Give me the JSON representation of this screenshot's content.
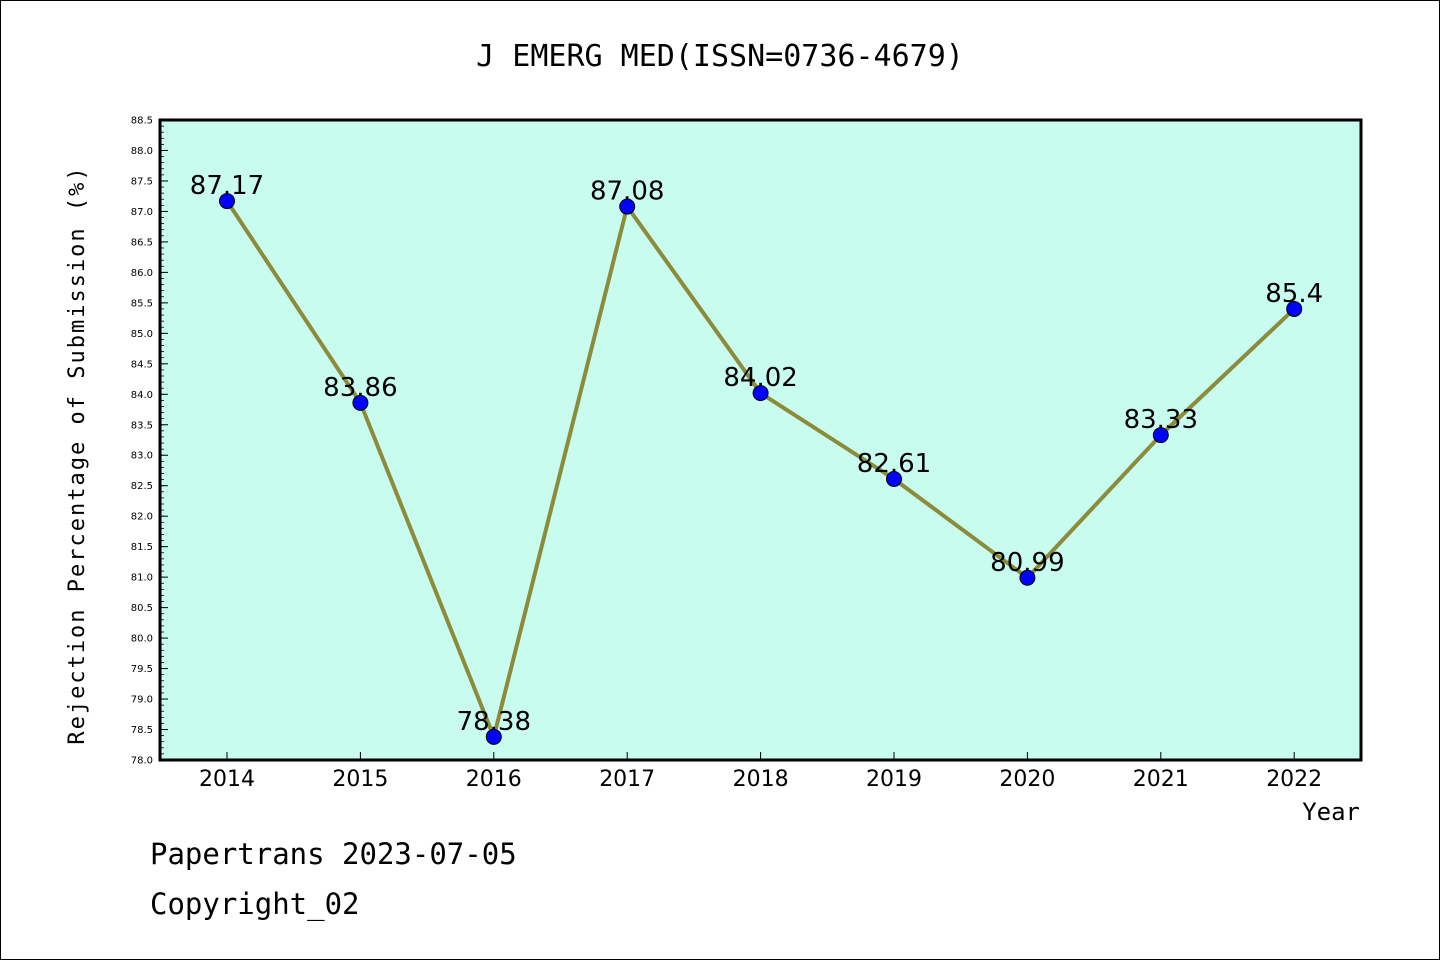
{
  "chart_data": {
    "type": "line",
    "title": "J EMERG MED(ISSN=0736-4679)",
    "xlabel": "Year",
    "ylabel": "Rejection Percentage of Submission (%)",
    "x": [
      "2014",
      "2015",
      "2016",
      "2017",
      "2018",
      "2019",
      "2020",
      "2021",
      "2022"
    ],
    "series": [
      {
        "values": [
          87.17,
          83.86,
          78.38,
          87.08,
          84.02,
          82.61,
          80.99,
          83.33,
          85.4
        ],
        "labels": [
          "87.17",
          "83.86",
          "78.38",
          "87.08",
          "84.02",
          "82.61",
          "80.99",
          "83.33",
          "85.4"
        ],
        "line_color": "#8b8b3a",
        "marker_color": "#0000ff"
      }
    ],
    "ylim": [
      78.0,
      88.5
    ],
    "yticks": [
      "78.0",
      "78.5",
      "79.0",
      "79.5",
      "80.0",
      "80.5",
      "81.0",
      "81.5",
      "82.0",
      "82.5",
      "83.0",
      "83.5",
      "84.0",
      "84.5",
      "85.0",
      "85.5",
      "86.0",
      "86.5",
      "87.0",
      "87.5",
      "88.0",
      "88.5"
    ],
    "plot_background": "#c8fcee",
    "grid": false,
    "legend": "none"
  },
  "footer": {
    "line1": "Papertrans 2023-07-05",
    "line2": "Copyright_02"
  }
}
